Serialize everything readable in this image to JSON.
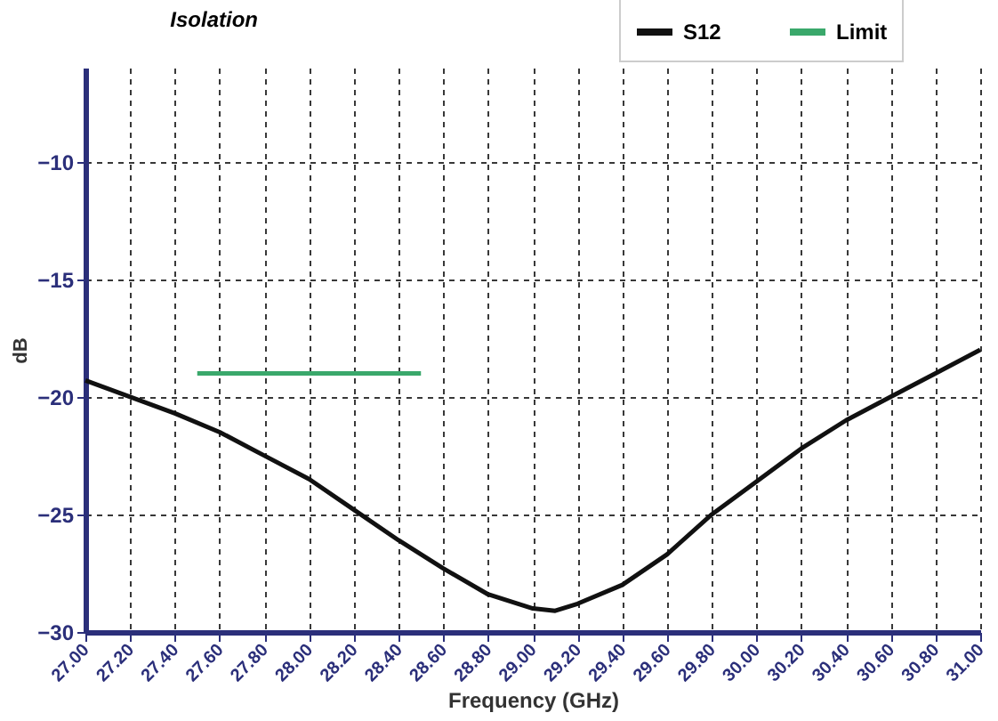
{
  "chart_data": {
    "type": "line",
    "title": "Isolation",
    "xlabel": "Frequency (GHz)",
    "ylabel": "dB",
    "xlim": [
      27,
      31
    ],
    "ylim": [
      -30,
      -6
    ],
    "xticks": [
      {
        "value": 27,
        "label": "27.00"
      },
      {
        "value": 27.2,
        "label": "27.20"
      },
      {
        "value": 27.4,
        "label": "27.40"
      },
      {
        "value": 27.6,
        "label": "27.60"
      },
      {
        "value": 27.8,
        "label": "27.80"
      },
      {
        "value": 28,
        "label": "28.00"
      },
      {
        "value": 28.2,
        "label": "28.20"
      },
      {
        "value": 28.4,
        "label": "28.40"
      },
      {
        "value": 28.6,
        "label": "28.60"
      },
      {
        "value": 28.8,
        "label": "28.80"
      },
      {
        "value": 29,
        "label": "29.00"
      },
      {
        "value": 29.2,
        "label": "29.20"
      },
      {
        "value": 29.4,
        "label": "29.40"
      },
      {
        "value": 29.6,
        "label": "29.60"
      },
      {
        "value": 29.8,
        "label": "29.80"
      },
      {
        "value": 30,
        "label": "30.00"
      },
      {
        "value": 30.2,
        "label": "30.20"
      },
      {
        "value": 30.4,
        "label": "30.40"
      },
      {
        "value": 30.6,
        "label": "30.60"
      },
      {
        "value": 30.8,
        "label": "30.80"
      },
      {
        "value": 31,
        "label": "31.00"
      }
    ],
    "yticks": [
      -30,
      -25,
      -20,
      -15,
      -10
    ],
    "grid": true,
    "legend": "top right",
    "line_style": "solid",
    "series": [
      {
        "name": "S12",
        "color": "#111111",
        "x": [
          27,
          27.2,
          27.4,
          27.6,
          27.8,
          28,
          28.2,
          28.4,
          28.6,
          28.8,
          29,
          29.1,
          29.2,
          29.4,
          29.6,
          29.8,
          30,
          30.2,
          30.4,
          30.6,
          30.8,
          31
        ],
        "values": [
          -19.3,
          -20,
          -20.7,
          -21.5,
          -22.5,
          -23.5,
          -24.8,
          -26.1,
          -27.3,
          -28.4,
          -29,
          -29.1,
          -28.8,
          -28,
          -26.7,
          -25,
          -23.6,
          -22.2,
          -21,
          -20,
          -19,
          -18
        ]
      },
      {
        "name": "Limit",
        "color": "#3aa86b",
        "x": [
          27.5,
          28.5
        ],
        "values": [
          -19,
          -19
        ]
      }
    ]
  }
}
